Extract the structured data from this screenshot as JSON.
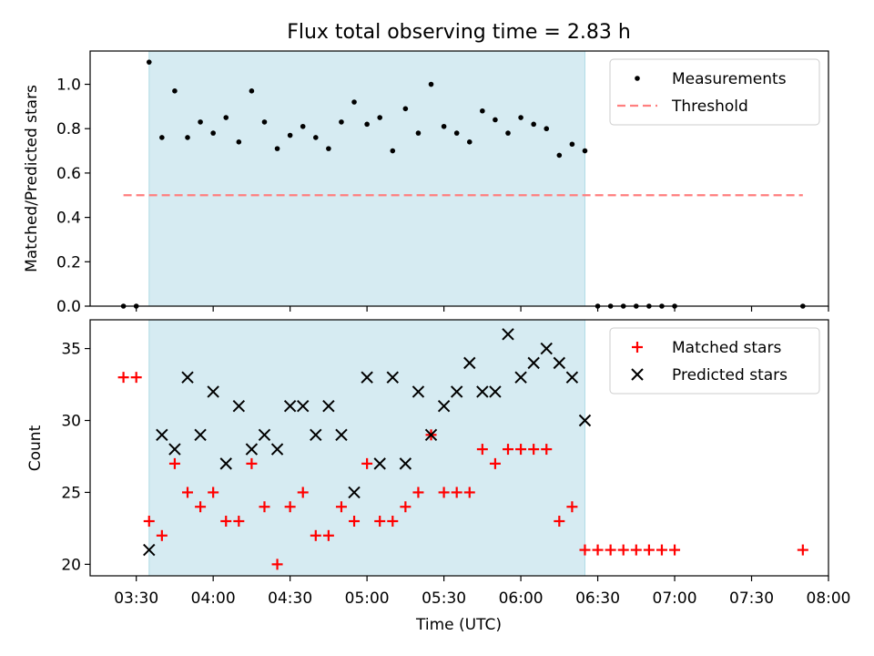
{
  "chart_data": [
    {
      "type": "scatter",
      "title": "Flux total observing time = 2.83 h",
      "ylabel": "Matched/Predicted stars",
      "ylim": [
        0,
        1.15
      ],
      "yticks": [
        0.0,
        0.2,
        0.4,
        0.6,
        0.8,
        1.0
      ],
      "ytick_labels": [
        "0.0",
        "0.2",
        "0.4",
        "0.6",
        "0.8",
        "1.0"
      ],
      "legend_position": "top-right",
      "shaded_region": {
        "from": "03:35",
        "to": "06:25",
        "color": "#add8e6"
      },
      "series": [
        {
          "name": "Measurements",
          "marker": "dot",
          "color": "#000000",
          "x": [
            "03:25",
            "03:30",
            "03:35",
            "03:40",
            "03:45",
            "03:50",
            "03:55",
            "04:00",
            "04:05",
            "04:10",
            "04:15",
            "04:20",
            "04:25",
            "04:30",
            "04:35",
            "04:40",
            "04:45",
            "04:50",
            "04:55",
            "05:00",
            "05:05",
            "05:10",
            "05:15",
            "05:20",
            "05:25",
            "05:30",
            "05:35",
            "05:40",
            "05:45",
            "05:50",
            "05:55",
            "06:00",
            "06:05",
            "06:10",
            "06:15",
            "06:20",
            "06:25",
            "06:30",
            "06:35",
            "06:40",
            "06:45",
            "06:50",
            "06:55",
            "07:00",
            "07:50"
          ],
          "y": [
            0.0,
            0.0,
            1.1,
            0.76,
            0.97,
            0.76,
            0.83,
            0.78,
            0.85,
            0.74,
            0.97,
            0.83,
            0.71,
            0.77,
            0.81,
            0.76,
            0.71,
            0.83,
            0.92,
            0.82,
            0.85,
            0.7,
            0.89,
            0.78,
            1.0,
            0.81,
            0.78,
            0.74,
            0.88,
            0.84,
            0.78,
            0.85,
            0.82,
            0.8,
            0.68,
            0.73,
            0.7,
            0.0,
            0.0,
            0.0,
            0.0,
            0.0,
            0.0,
            0.0,
            0.0
          ]
        },
        {
          "name": "Threshold",
          "marker": "dashed-line",
          "color": "#ff7f7f",
          "x": [
            "03:25",
            "07:50"
          ],
          "y": [
            0.5,
            0.5
          ]
        }
      ]
    },
    {
      "type": "scatter",
      "xlabel": "Time (UTC)",
      "ylabel": "Count",
      "ylim": [
        19.2,
        37
      ],
      "yticks": [
        20,
        25,
        30,
        35
      ],
      "ytick_labels": [
        "20",
        "25",
        "30",
        "35"
      ],
      "xlim": [
        "03:12",
        "08:00"
      ],
      "xticks": [
        "03:30",
        "04:00",
        "04:30",
        "05:00",
        "05:30",
        "06:00",
        "06:30",
        "07:00",
        "07:30",
        "08:00"
      ],
      "xtick_labels": [
        "03:30",
        "04:00",
        "04:30",
        "05:00",
        "05:30",
        "06:00",
        "06:30",
        "07:00",
        "07:30",
        "08:00"
      ],
      "legend_position": "top-right",
      "shaded_region": {
        "from": "03:35",
        "to": "06:25",
        "color": "#add8e6"
      },
      "series": [
        {
          "name": "Matched stars",
          "marker": "plus",
          "color": "#ff0000",
          "x": [
            "03:25",
            "03:30",
            "03:35",
            "03:40",
            "03:45",
            "03:50",
            "03:55",
            "04:00",
            "04:05",
            "04:10",
            "04:15",
            "04:20",
            "04:25",
            "04:30",
            "04:35",
            "04:40",
            "04:45",
            "04:50",
            "04:55",
            "05:00",
            "05:05",
            "05:10",
            "05:15",
            "05:20",
            "05:25",
            "05:30",
            "05:35",
            "05:40",
            "05:45",
            "05:50",
            "05:55",
            "06:00",
            "06:05",
            "06:10",
            "06:15",
            "06:20",
            "06:25",
            "06:30",
            "06:35",
            "06:40",
            "06:45",
            "06:50",
            "06:55",
            "07:00",
            "07:50"
          ],
          "y": [
            33,
            33,
            23,
            22,
            27,
            25,
            24,
            25,
            23,
            23,
            27,
            24,
            20,
            24,
            25,
            22,
            22,
            24,
            23,
            27,
            23,
            23,
            24,
            25,
            29,
            25,
            25,
            25,
            28,
            27,
            28,
            28,
            28,
            28,
            23,
            24,
            21,
            21,
            21,
            21,
            21,
            21,
            21,
            21,
            21
          ]
        },
        {
          "name": "Predicted stars",
          "marker": "x",
          "color": "#000000",
          "x": [
            "03:35",
            "03:40",
            "03:45",
            "03:50",
            "03:55",
            "04:00",
            "04:05",
            "04:10",
            "04:15",
            "04:20",
            "04:25",
            "04:30",
            "04:35",
            "04:40",
            "04:45",
            "04:50",
            "04:55",
            "05:00",
            "05:05",
            "05:10",
            "05:15",
            "05:20",
            "05:25",
            "05:30",
            "05:35",
            "05:40",
            "05:45",
            "05:50",
            "05:55",
            "06:00",
            "06:05",
            "06:10",
            "06:15",
            "06:20",
            "06:25"
          ],
          "y": [
            21,
            29,
            28,
            33,
            29,
            32,
            27,
            31,
            28,
            29,
            28,
            31,
            31,
            29,
            31,
            29,
            25,
            33,
            27,
            33,
            27,
            32,
            29,
            31,
            32,
            34,
            32,
            32,
            36,
            33,
            34,
            35,
            34,
            33,
            30
          ]
        }
      ]
    }
  ]
}
